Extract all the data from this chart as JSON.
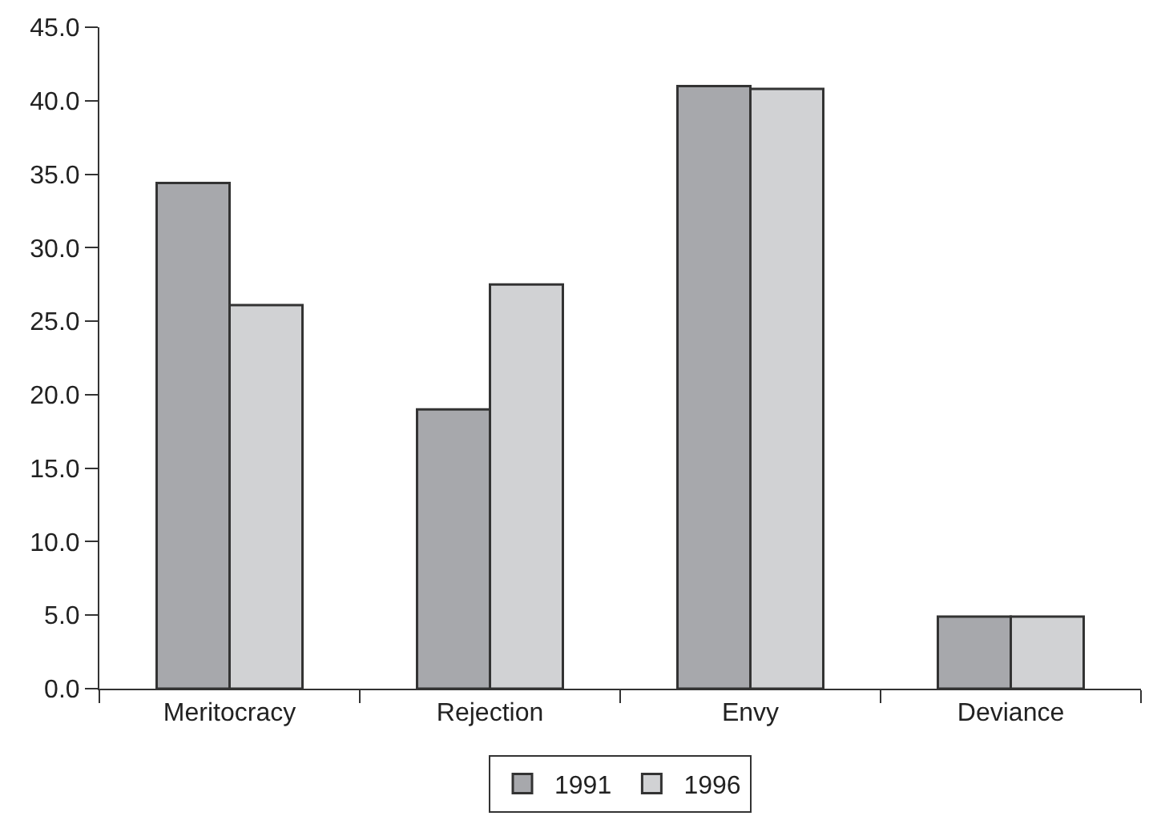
{
  "chart_data": {
    "type": "bar",
    "categories": [
      "Meritocracy",
      "Rejection",
      "Envy",
      "Deviance"
    ],
    "series": [
      {
        "name": "1991",
        "color": "#a7a8ac",
        "values": [
          34.4,
          19.0,
          41.0,
          4.9
        ]
      },
      {
        "name": "1996",
        "color": "#d1d2d4",
        "values": [
          26.1,
          27.5,
          40.8,
          4.9
        ]
      }
    ],
    "ylim": [
      0,
      45
    ],
    "yticks": [
      {
        "value": 0,
        "label": "0.0"
      },
      {
        "value": 5,
        "label": "5.0"
      },
      {
        "value": 10,
        "label": "10.0"
      },
      {
        "value": 15,
        "label": "15.0"
      },
      {
        "value": 20,
        "label": "20.0"
      },
      {
        "value": 25,
        "label": "25.0"
      },
      {
        "value": 30,
        "label": "30.0"
      },
      {
        "value": 35,
        "label": "35.0"
      },
      {
        "value": 40,
        "label": "40.0"
      },
      {
        "value": 45,
        "label": "45.0"
      }
    ],
    "legend": "bottom"
  }
}
